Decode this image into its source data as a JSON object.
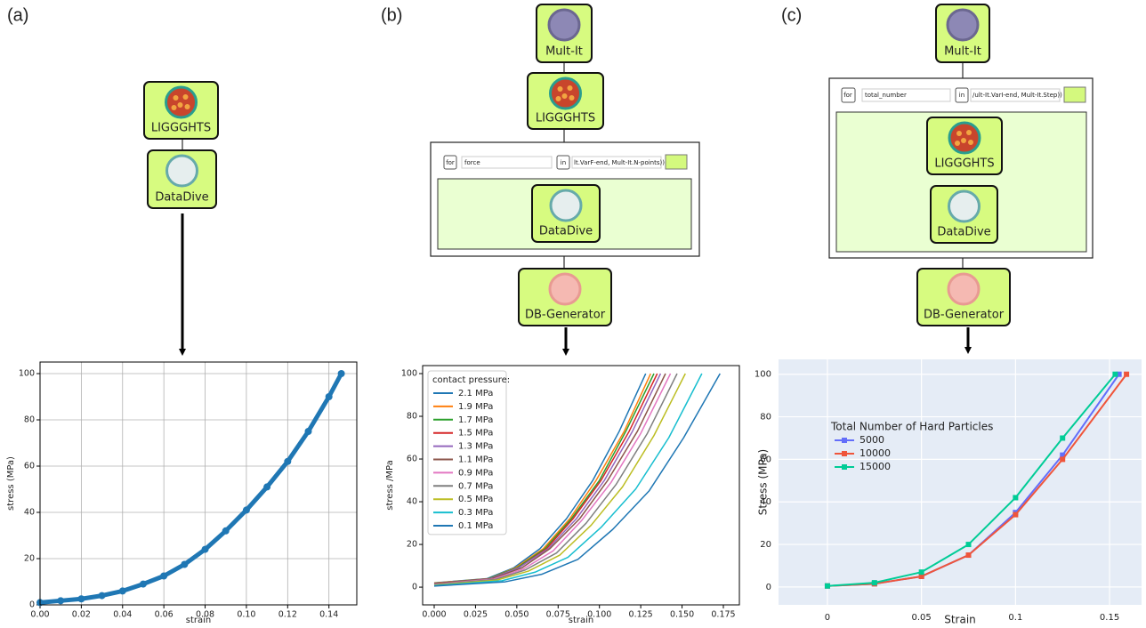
{
  "panels": [
    {
      "label": "(a)",
      "nodes": [
        "LIGGGHTS",
        "DataDive"
      ]
    },
    {
      "label": "(b)",
      "nodes": [
        "Mult-It",
        "LIGGGHTS",
        "DataDive",
        "DB-Generator"
      ],
      "loop": {
        "keyword": "for",
        "variable": "force",
        "in": "in",
        "iterable": "lt.VarF-end, Mult-It.N-points))"
      }
    },
    {
      "label": "(c)",
      "nodes": [
        "Mult-It",
        "LIGGGHTS",
        "DataDive",
        "DB-Generator"
      ],
      "loop": {
        "keyword": "for",
        "variable": "total_number",
        "in": "in",
        "iterable": "/ult-It.VarI-end, Mult-It.Step))"
      }
    }
  ],
  "chart_data": [
    {
      "type": "line",
      "markers": true,
      "grid": true,
      "color": "#1f77b4",
      "x_label": "strain",
      "y_label": "stress (MPa)",
      "x": [
        0,
        0.01,
        0.02,
        0.03,
        0.04,
        0.05,
        0.06,
        0.07,
        0.08,
        0.09,
        0.1,
        0.11,
        0.12,
        0.13,
        0.14,
        0.146
      ],
      "values": [
        1,
        1.8,
        2.6,
        4,
        6,
        9,
        12.5,
        17.5,
        24,
        32,
        41,
        51,
        62,
        75,
        90,
        100
      ],
      "xlim": [
        0,
        0.1535
      ],
      "ylim": [
        0,
        105
      ],
      "xticks": [
        {
          "value": 0,
          "label": "0.00"
        },
        {
          "value": 0.02,
          "label": "0.02"
        },
        {
          "value": 0.04,
          "label": "0.04"
        },
        {
          "value": 0.06,
          "label": "0.06"
        },
        {
          "value": 0.08,
          "label": "0.08"
        },
        {
          "value": 0.1,
          "label": "0.10"
        },
        {
          "value": 0.12,
          "label": "0.12"
        },
        {
          "value": 0.14,
          "label": "0.14"
        }
      ],
      "yticks": [
        0,
        20,
        40,
        60,
        80,
        100
      ]
    },
    {
      "type": "line",
      "markers": false,
      "grid": false,
      "legend": "upper left",
      "legend_title": "contact pressure:",
      "x_label": "strain",
      "y_label": "stress /MPa",
      "xlim": [
        -0.007,
        0.1847
      ],
      "ylim": [
        -8.3,
        103.75
      ],
      "xticks": [
        {
          "value": 0,
          "label": "0.000"
        },
        {
          "value": 0.025,
          "label": "0.025"
        },
        {
          "value": 0.05,
          "label": "0.050"
        },
        {
          "value": 0.075,
          "label": "0.075"
        },
        {
          "value": 0.1,
          "label": "0.100"
        },
        {
          "value": 0.125,
          "label": "0.125"
        },
        {
          "value": 0.15,
          "label": "0.150"
        },
        {
          "value": 0.175,
          "label": "0.175"
        }
      ],
      "yticks": [
        0,
        20,
        40,
        60,
        80,
        100
      ],
      "series": [
        {
          "name": "2.1 MPa",
          "color": "#1f77b4",
          "x": [
            0,
            0.032,
            0.048,
            0.064,
            0.08,
            0.096,
            0.112,
            0.128
          ],
          "values": [
            2,
            4,
            9,
            18,
            32,
            50,
            73,
            100
          ]
        },
        {
          "name": "1.9 MPa",
          "color": "#ff7f0e",
          "x": [
            0,
            0.033,
            0.049,
            0.066,
            0.082,
            0.098,
            0.115,
            0.131
          ],
          "values": [
            1.9,
            4,
            9,
            18,
            32,
            50,
            73,
            100
          ]
        },
        {
          "name": "1.7 MPa",
          "color": "#2ca02c",
          "x": [
            0,
            0.033,
            0.05,
            0.067,
            0.083,
            0.1,
            0.116,
            0.133
          ],
          "values": [
            1.8,
            4,
            9,
            18,
            32,
            50,
            73,
            100
          ]
        },
        {
          "name": "1.5 MPa",
          "color": "#d62728",
          "x": [
            0,
            0.034,
            0.051,
            0.068,
            0.084,
            0.101,
            0.118,
            0.135
          ],
          "values": [
            1.7,
            4,
            9,
            18,
            32,
            50,
            73,
            100
          ]
        },
        {
          "name": "1.3 MPa",
          "color": "#9467bd",
          "x": [
            0,
            0.034,
            0.051,
            0.069,
            0.086,
            0.103,
            0.12,
            0.137
          ],
          "values": [
            1.6,
            4,
            9,
            18,
            32,
            50,
            73,
            100
          ]
        },
        {
          "name": "1.1 MPa",
          "color": "#8c564b",
          "x": [
            0,
            0.035,
            0.053,
            0.07,
            0.088,
            0.105,
            0.123,
            0.14
          ],
          "values": [
            1.5,
            4,
            9,
            18,
            32,
            50,
            73,
            100
          ]
        },
        {
          "name": "0.9 MPa",
          "color": "#e377c2",
          "x": [
            0,
            0.036,
            0.054,
            0.072,
            0.089,
            0.107,
            0.125,
            0.143
          ],
          "values": [
            1.3,
            3.8,
            8.5,
            17,
            31,
            49,
            72,
            100
          ]
        },
        {
          "name": "0.7 MPa",
          "color": "#7f7f7f",
          "x": [
            0,
            0.037,
            0.055,
            0.074,
            0.092,
            0.11,
            0.129,
            0.147
          ],
          "values": [
            1.1,
            3.6,
            8,
            16,
            30,
            48,
            72,
            100
          ]
        },
        {
          "name": "0.5 MPa",
          "color": "#bcbd22",
          "x": [
            0,
            0.038,
            0.057,
            0.076,
            0.095,
            0.114,
            0.133,
            0.152
          ],
          "values": [
            0.9,
            3.3,
            7.5,
            15,
            29,
            47,
            71,
            100
          ]
        },
        {
          "name": "0.3 MPa",
          "color": "#17becf",
          "x": [
            0,
            0.041,
            0.061,
            0.081,
            0.101,
            0.122,
            0.142,
            0.162
          ],
          "values": [
            0.7,
            3,
            7,
            14,
            28,
            46,
            70,
            100
          ]
        },
        {
          "name": "0.1 MPa",
          "color": "#1f77b4",
          "x": [
            0,
            0.043,
            0.065,
            0.087,
            0.108,
            0.13,
            0.151,
            0.173
          ],
          "values": [
            0.5,
            2.5,
            6,
            13,
            27,
            45,
            70,
            100
          ]
        }
      ]
    },
    {
      "type": "line",
      "markers": true,
      "grid": true,
      "legend": "center left",
      "legend_title": "Total Number of Hard Particles",
      "x_label": "Strain",
      "y_label": "Stress (MPa)",
      "xlim": [
        -0.026,
        0.167
      ],
      "ylim": [
        -8.4,
        107
      ],
      "xticks": [
        0,
        0.05,
        0.1,
        0.15
      ],
      "yticks": [
        0,
        20,
        40,
        60,
        80,
        100
      ],
      "series": [
        {
          "name": "5000",
          "color": "#636efa",
          "x": [
            0,
            0.025,
            0.05,
            0.075,
            0.1,
            0.125,
            0.155
          ],
          "values": [
            0.5,
            1.5,
            5,
            15,
            35,
            62,
            100
          ]
        },
        {
          "name": "10000",
          "color": "#ef553b",
          "x": [
            0,
            0.025,
            0.05,
            0.075,
            0.1,
            0.125,
            0.159
          ],
          "values": [
            0.5,
            1.5,
            5,
            15,
            34,
            60,
            100
          ]
        },
        {
          "name": "15000",
          "color": "#00cc96",
          "x": [
            0,
            0.025,
            0.05,
            0.075,
            0.1,
            0.125,
            0.153
          ],
          "values": [
            0.5,
            2,
            7,
            20,
            42,
            70,
            100
          ]
        }
      ]
    }
  ]
}
